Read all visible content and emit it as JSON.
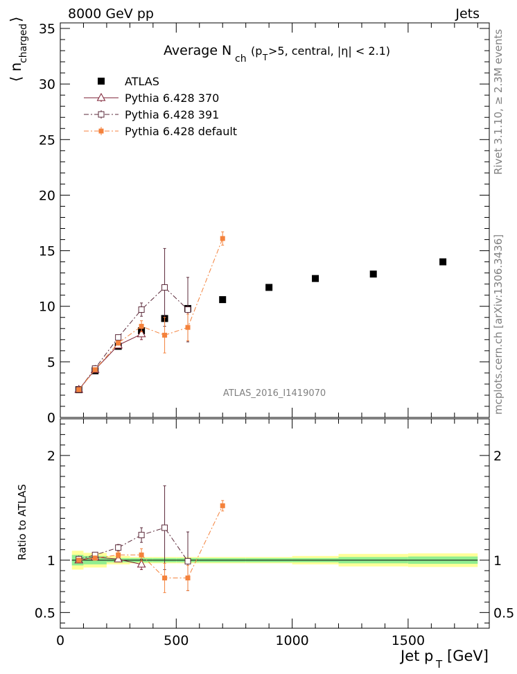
{
  "header": {
    "energy": "8000 GeV pp",
    "process": "Jets"
  },
  "side_text": {
    "rivet": "Rivet 3.1.10, ≥ 2.3M events",
    "mcplots": "mcplots.cern.ch [arXiv:1306.3436]"
  },
  "analysis_id": "ATLAS_2016_I1419070",
  "chart_data": [
    {
      "type": "scatter",
      "title": "Average N_ch (p_T>5, central, |η| < 2.1)",
      "ylabel": "⟨ n_charged ⟩",
      "xlim": [
        0,
        1850
      ],
      "ylim": [
        0,
        35.5
      ],
      "yticks": [
        0,
        5,
        10,
        15,
        20,
        25,
        30,
        35
      ],
      "legend_position": "top-left",
      "series": [
        {
          "name": "ATLAS",
          "color": "#000000",
          "marker": "filled-square",
          "x": [
            80,
            150,
            250,
            350,
            450,
            550,
            700,
            900,
            1100,
            1350,
            1650
          ],
          "y": [
            2.5,
            4.2,
            6.4,
            7.8,
            8.9,
            9.8,
            10.6,
            11.7,
            12.5,
            12.9,
            14.0
          ]
        },
        {
          "name": "Pythia 6.428 370",
          "color": "#7b1e32",
          "marker": "open-triangle",
          "line": "solid",
          "x": [
            80,
            150,
            250,
            350
          ],
          "y": [
            2.5,
            4.3,
            6.5,
            7.5
          ],
          "yerr": [
            0.05,
            0.1,
            0.15,
            0.5
          ]
        },
        {
          "name": "Pythia 6.428 391",
          "color": "#5a2838",
          "marker": "open-square",
          "line": "dashdot",
          "x": [
            80,
            150,
            250,
            350,
            450,
            550
          ],
          "y": [
            2.5,
            4.4,
            7.2,
            9.7,
            11.7,
            9.7
          ],
          "yerr": [
            0.05,
            0.1,
            0.2,
            0.6,
            3.5,
            2.9
          ]
        },
        {
          "name": "Pythia 6.428 default",
          "color": "#f4823c",
          "marker": "filled-square",
          "line": "dashdot",
          "x": [
            80,
            150,
            250,
            350,
            450,
            550,
            700
          ],
          "y": [
            2.5,
            4.3,
            6.7,
            8.2,
            7.4,
            8.1,
            16.1
          ],
          "yerr": [
            0.05,
            0.1,
            0.2,
            0.5,
            1.6,
            1.2,
            0.6
          ]
        }
      ]
    },
    {
      "type": "scatter",
      "ylabel": "Ratio to ATLAS",
      "xlabel": "Jet p_T [GeV]",
      "xlim": [
        0,
        1850
      ],
      "ylim": [
        0.35,
        2.35
      ],
      "yticks": [
        0.5,
        1,
        2
      ],
      "xticks": [
        0,
        500,
        1000,
        1500
      ],
      "bands": {
        "edges": [
          50,
          100,
          200,
          300,
          400,
          500,
          600,
          800,
          1000,
          1200,
          1500,
          1800
        ],
        "inner": [
          0.05,
          0.04,
          0.02,
          0.02,
          0.02,
          0.02,
          0.02,
          0.02,
          0.02,
          0.03,
          0.035
        ],
        "outer": [
          0.09,
          0.07,
          0.04,
          0.03,
          0.03,
          0.03,
          0.03,
          0.03,
          0.04,
          0.06,
          0.065
        ],
        "inner_color": "#90ee90",
        "outer_color": "#ffff99"
      },
      "series": [
        {
          "name": "Pythia 6.428 370",
          "x": [
            80,
            150,
            250,
            350
          ],
          "y": [
            1.0,
            1.03,
            1.01,
            0.96
          ],
          "yerr": [
            0.02,
            0.02,
            0.02,
            0.05
          ]
        },
        {
          "name": "Pythia 6.428 391",
          "x": [
            80,
            150,
            250,
            350,
            450,
            550
          ],
          "y": [
            1.01,
            1.05,
            1.12,
            1.24,
            1.31,
            0.99
          ],
          "yerr": [
            0.02,
            0.02,
            0.03,
            0.07,
            0.4,
            0.28
          ]
        },
        {
          "name": "Pythia 6.428 default",
          "x": [
            80,
            150,
            250,
            350,
            450,
            550,
            700
          ],
          "y": [
            1.0,
            1.02,
            1.05,
            1.05,
            0.83,
            0.83,
            1.52
          ],
          "yerr": [
            0.02,
            0.02,
            0.03,
            0.06,
            0.14,
            0.12,
            0.05
          ]
        }
      ]
    }
  ]
}
